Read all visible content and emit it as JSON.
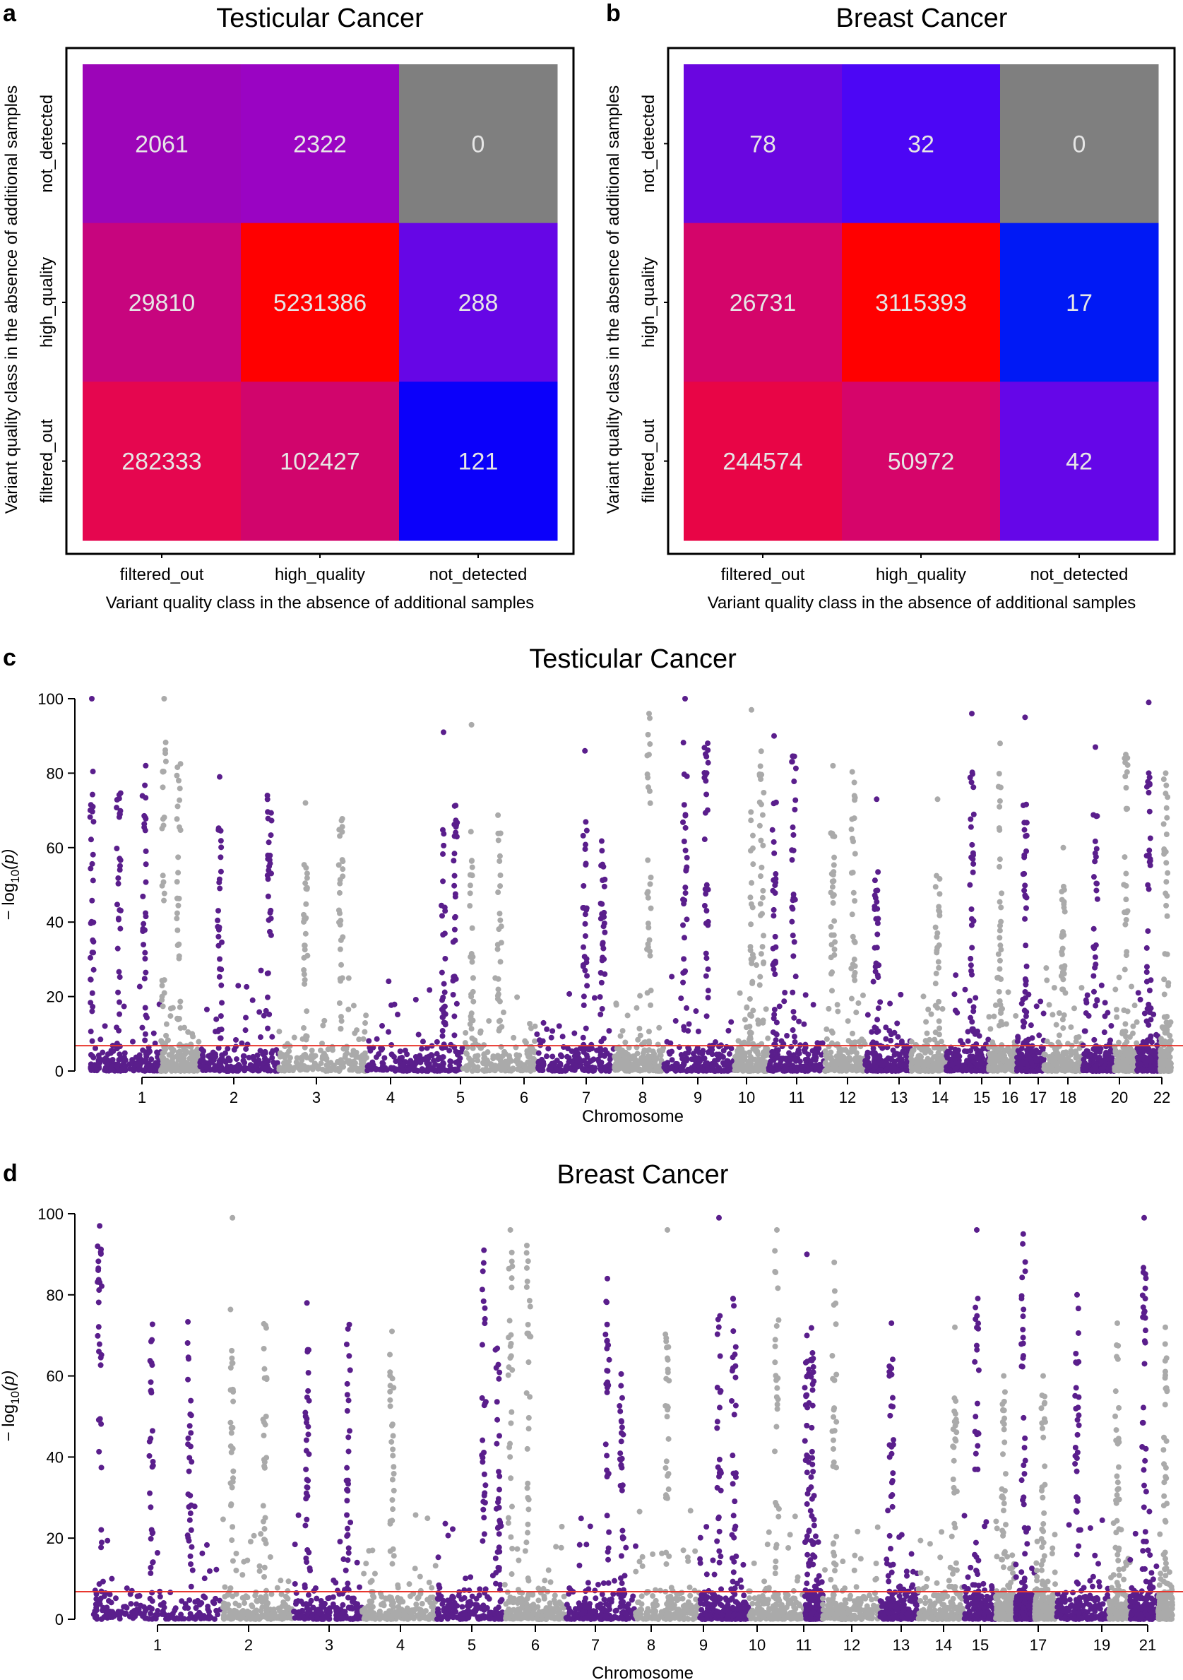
{
  "colors": {
    "purple": "#5a1e8c",
    "grey": "#aaaaaa",
    "threshold": "#e8372e",
    "axis": "#000000",
    "cell_text": "#e6e6e6"
  },
  "heatmaps": [
    {
      "panel_label": "a",
      "title": "Testicular Cancer",
      "xlabel": "Variant quality class in the absence of additional samples",
      "ylabel": "Variant quality class in the absence of additional samples",
      "x_categories": [
        "filtered_out",
        "high_quality",
        "not_detected"
      ],
      "y_categories": [
        "not_detected",
        "high_quality",
        "filtered_out"
      ],
      "rows": [
        {
          "values": [
            "2061",
            "2322",
            "0"
          ],
          "colors": [
            "#9c05b8",
            "#9a04c3",
            "#7f7f7f"
          ]
        },
        {
          "values": [
            "29810",
            "5231386",
            "288"
          ],
          "colors": [
            "#c7057e",
            "#ff0000",
            "#6606e6"
          ]
        },
        {
          "values": [
            "282333",
            "102427",
            "121"
          ],
          "colors": [
            "#e5064f",
            "#d1056c",
            "#0b00fa"
          ]
        }
      ]
    },
    {
      "panel_label": "b",
      "title": "Breast Cancer",
      "xlabel": "Variant quality class in the absence of additional samples",
      "ylabel": "Variant quality class in the absence of additional samples",
      "x_categories": [
        "filtered_out",
        "high_quality",
        "not_detected"
      ],
      "y_categories": [
        "not_detected",
        "high_quality",
        "filtered_out"
      ],
      "rows": [
        {
          "values": [
            "78",
            "32",
            "0"
          ],
          "colors": [
            "#6a06e0",
            "#4c06f5",
            "#7f7f7f"
          ]
        },
        {
          "values": [
            "26731",
            "3115393",
            "17"
          ],
          "colors": [
            "#d4056a",
            "#ff0000",
            "#0019f5"
          ]
        },
        {
          "values": [
            "244574",
            "50972",
            "42"
          ],
          "colors": [
            "#e80546",
            "#d6056a",
            "#6506e8"
          ]
        }
      ]
    }
  ],
  "chart_data": [
    {
      "type": "heatmap",
      "panel": "a",
      "title": "Testicular Cancer",
      "xlabel": "Variant quality class in the absence of additional samples",
      "ylabel": "Variant quality class in the absence of additional samples",
      "x_categories": [
        "filtered_out",
        "high_quality",
        "not_detected"
      ],
      "y_categories": [
        "not_detected",
        "high_quality",
        "filtered_out"
      ],
      "values": [
        [
          2061,
          2322,
          0
        ],
        [
          29810,
          5231386,
          288
        ],
        [
          282333,
          102427,
          121
        ]
      ]
    },
    {
      "type": "heatmap",
      "panel": "b",
      "title": "Breast Cancer",
      "xlabel": "Variant quality class in the absence of additional samples",
      "ylabel": "Variant quality class in the absence of additional samples",
      "x_categories": [
        "filtered_out",
        "high_quality",
        "not_detected"
      ],
      "y_categories": [
        "not_detected",
        "high_quality",
        "filtered_out"
      ],
      "values": [
        [
          78,
          32,
          0
        ],
        [
          26731,
          3115393,
          17
        ],
        [
          244574,
          50972,
          42
        ]
      ]
    },
    {
      "type": "scatter",
      "panel": "c",
      "title": "Testicular Cancer",
      "xlabel": "Chromosome",
      "ylabel_prefix": "− log",
      "ylabel_sub": "10",
      "ylabel_var": "(p)",
      "ylim": [
        0,
        100
      ],
      "yticks": [
        0,
        20,
        40,
        60,
        80,
        100
      ],
      "threshold": 6.8,
      "x_ticks": [
        "1",
        "2",
        "3",
        "4",
        "5",
        "6",
        "7",
        "8",
        "9",
        "10",
        "11",
        "12",
        "13",
        "14",
        "15",
        "16",
        "17",
        "18",
        "20",
        "22"
      ],
      "chromosomes": [
        {
          "chr": "1",
          "color": "purple",
          "max": 100,
          "peaks": [
            2,
            40,
            76
          ]
        },
        {
          "chr": "2",
          "color": "grey",
          "max": 100,
          "peaks": [
            8,
            45
          ]
        },
        {
          "chr": "3",
          "color": "purple",
          "max": 79,
          "peaks": [
            25,
            88
          ]
        },
        {
          "chr": "4",
          "color": "grey",
          "max": 72,
          "peaks": [
            30,
            70
          ]
        },
        {
          "chr": "5",
          "color": "purple",
          "max": 91,
          "peaks": [
            80,
            92
          ]
        },
        {
          "chr": "6",
          "color": "grey",
          "max": 93,
          "peaks": [
            12,
            50
          ]
        },
        {
          "chr": "7",
          "color": "purple",
          "max": 86,
          "peaks": [
            62,
            85
          ]
        },
        {
          "chr": "8",
          "color": "grey",
          "max": 96,
          "peaks": [
            70
          ]
        },
        {
          "chr": "9",
          "color": "purple",
          "max": 100,
          "peaks": [
            30,
            60
          ]
        },
        {
          "chr": "10",
          "color": "grey",
          "max": 97,
          "peaks": [
            50,
            80
          ]
        },
        {
          "chr": "11",
          "color": "purple",
          "max": 90,
          "peaks": [
            10,
            45
          ]
        },
        {
          "chr": "12",
          "color": "grey",
          "max": 82,
          "peaks": [
            20,
            70
          ]
        },
        {
          "chr": "13",
          "color": "purple",
          "max": 73,
          "peaks": [
            25
          ]
        },
        {
          "chr": "14",
          "color": "grey",
          "max": 73,
          "peaks": [
            75
          ]
        },
        {
          "chr": "15",
          "color": "purple",
          "max": 96,
          "peaks": [
            60
          ]
        },
        {
          "chr": "16",
          "color": "grey",
          "max": 88,
          "peaks": [
            40
          ]
        },
        {
          "chr": "17",
          "color": "purple",
          "max": 95,
          "peaks": [
            30
          ]
        },
        {
          "chr": "18",
          "color": "grey",
          "max": 60,
          "peaks": [
            50
          ]
        },
        {
          "chr": "19",
          "color": "purple",
          "max": 87,
          "peaks": [
            40
          ]
        },
        {
          "chr": "20",
          "color": "grey",
          "max": 85,
          "peaks": [
            50
          ]
        },
        {
          "chr": "21",
          "color": "purple",
          "max": 99,
          "peaks": [
            50
          ]
        },
        {
          "chr": "22",
          "color": "grey",
          "max": 80,
          "peaks": [
            50
          ]
        }
      ]
    },
    {
      "type": "scatter",
      "panel": "d",
      "title": "Breast Cancer",
      "xlabel": "Chromosome",
      "ylabel_prefix": "− log",
      "ylabel_sub": "10",
      "ylabel_var": "(p)",
      "ylim": [
        0,
        100
      ],
      "yticks": [
        0,
        20,
        40,
        60,
        80,
        100
      ],
      "threshold": 6.8,
      "x_ticks": [
        "1",
        "2",
        "3",
        "4",
        "5",
        "6",
        "7",
        "8",
        "9",
        "10",
        "11",
        "12",
        "13",
        "14",
        "15",
        "17",
        "19",
        "21"
      ],
      "chromosomes": [
        {
          "chr": "1",
          "color": "purple",
          "max": 97,
          "peaks": [
            5,
            45,
            75
          ]
        },
        {
          "chr": "2",
          "color": "grey",
          "max": 99,
          "peaks": [
            15,
            60
          ]
        },
        {
          "chr": "3",
          "color": "purple",
          "max": 78,
          "peaks": [
            20,
            80
          ]
        },
        {
          "chr": "4",
          "color": "grey",
          "max": 71,
          "peaks": [
            40
          ]
        },
        {
          "chr": "5",
          "color": "purple",
          "max": 91,
          "peaks": [
            70,
            90
          ]
        },
        {
          "chr": "6",
          "color": "grey",
          "max": 96,
          "peaks": [
            10,
            40
          ]
        },
        {
          "chr": "7",
          "color": "purple",
          "max": 84,
          "peaks": [
            60,
            80
          ]
        },
        {
          "chr": "8",
          "color": "grey",
          "max": 96,
          "peaks": [
            50
          ]
        },
        {
          "chr": "9",
          "color": "purple",
          "max": 99,
          "peaks": [
            40,
            70
          ]
        },
        {
          "chr": "10",
          "color": "grey",
          "max": 96,
          "peaks": [
            50
          ]
        },
        {
          "chr": "11",
          "color": "purple",
          "max": 90,
          "peaks": [
            10,
            40
          ]
        },
        {
          "chr": "12",
          "color": "grey",
          "max": 88,
          "peaks": [
            20
          ]
        },
        {
          "chr": "13",
          "color": "purple",
          "max": 73,
          "peaks": [
            30
          ]
        },
        {
          "chr": "14",
          "color": "grey",
          "max": 72,
          "peaks": [
            80
          ]
        },
        {
          "chr": "15",
          "color": "purple",
          "max": 96,
          "peaks": [
            40
          ]
        },
        {
          "chr": "16",
          "color": "grey",
          "max": 60,
          "peaks": [
            40
          ]
        },
        {
          "chr": "17",
          "color": "purple",
          "max": 95,
          "peaks": [
            40
          ]
        },
        {
          "chr": "18",
          "color": "grey",
          "max": 60,
          "peaks": [
            40
          ]
        },
        {
          "chr": "19",
          "color": "purple",
          "max": 80,
          "peaks": [
            40
          ]
        },
        {
          "chr": "20",
          "color": "grey",
          "max": 73,
          "peaks": [
            40
          ]
        },
        {
          "chr": "21",
          "color": "purple",
          "max": 99,
          "peaks": [
            50
          ]
        },
        {
          "chr": "22",
          "color": "grey",
          "max": 72,
          "peaks": [
            50
          ]
        }
      ]
    }
  ]
}
